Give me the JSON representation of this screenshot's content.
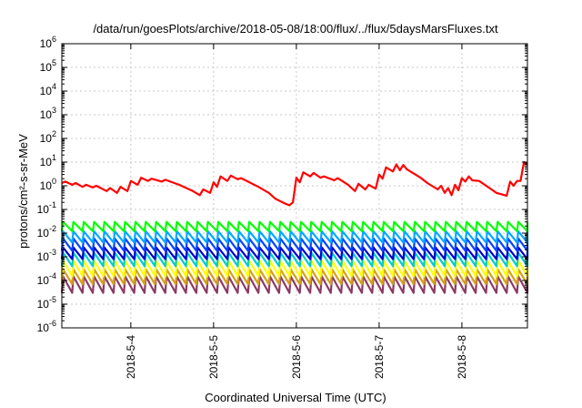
{
  "chart_data": {
    "type": "line",
    "title": "/data/run/goesPlots/archive/2018-05-08/18:00/flux/../flux/5daysMarsFluxes.txt",
    "xlabel": "Coordinated Universal Time (UTC)",
    "ylabel": "protons/cm²-s-sr-MeV",
    "yscale": "log",
    "ylim": [
      1e-06,
      1000000.0
    ],
    "y_ticks": [
      {
        "base": "10",
        "exp": "-6"
      },
      {
        "base": "10",
        "exp": "-5"
      },
      {
        "base": "10",
        "exp": "-4"
      },
      {
        "base": "10",
        "exp": "-3"
      },
      {
        "base": "10",
        "exp": "-2"
      },
      {
        "base": "10",
        "exp": "-1"
      },
      {
        "base": "10",
        "exp": "0"
      },
      {
        "base": "10",
        "exp": "1"
      },
      {
        "base": "10",
        "exp": "2"
      },
      {
        "base": "10",
        "exp": "3"
      },
      {
        "base": "10",
        "exp": "4"
      },
      {
        "base": "10",
        "exp": "5"
      },
      {
        "base": "10",
        "exp": "6"
      }
    ],
    "xlim": [
      "2018-05-03T04:00",
      "2018-05-08T19:00"
    ],
    "x_ticks": [
      {
        "t": "2018-05-04T00:00",
        "label": "2018-5-4"
      },
      {
        "t": "2018-05-05T00:00",
        "label": "2018-5-5"
      },
      {
        "t": "2018-05-06T00:00",
        "label": "2018-5-6"
      },
      {
        "t": "2018-05-07T00:00",
        "label": "2018-5-7"
      },
      {
        "t": "2018-05-08T00:00",
        "label": "2018-5-8"
      }
    ],
    "grid": true,
    "series": [
      {
        "color": "#ff0000",
        "pattern": "points",
        "points": [
          [
            "2018-05-03T04:00",
            1.3
          ],
          [
            "2018-05-03T05:00",
            1.5
          ],
          [
            "2018-05-03T07:00",
            1.1
          ],
          [
            "2018-05-03T08:00",
            1.3
          ],
          [
            "2018-05-03T10:00",
            0.9
          ],
          [
            "2018-05-03T11:00",
            1.1
          ],
          [
            "2018-05-03T13:00",
            0.85
          ],
          [
            "2018-05-03T14:00",
            1.0
          ],
          [
            "2018-05-03T17:00",
            0.6
          ],
          [
            "2018-05-03T18:00",
            0.8
          ],
          [
            "2018-05-03T20:00",
            0.5
          ],
          [
            "2018-05-03T21:00",
            0.9
          ],
          [
            "2018-05-03T23:00",
            0.6
          ],
          [
            "2018-05-04T00:00",
            1.6
          ],
          [
            "2018-05-04T02:00",
            1.1
          ],
          [
            "2018-05-04T03:00",
            2.2
          ],
          [
            "2018-05-04T05:00",
            1.6
          ],
          [
            "2018-05-04T06:00",
            2.0
          ],
          [
            "2018-05-04T09:00",
            1.5
          ],
          [
            "2018-05-04T10:00",
            1.8
          ],
          [
            "2018-05-04T14:00",
            1.1
          ],
          [
            "2018-05-04T18:00",
            0.6
          ],
          [
            "2018-05-04T20:00",
            0.4
          ],
          [
            "2018-05-04T21:00",
            0.7
          ],
          [
            "2018-05-04T23:00",
            0.5
          ],
          [
            "2018-05-05T00:00",
            1.4
          ],
          [
            "2018-05-05T01:00",
            0.9
          ],
          [
            "2018-05-05T02:00",
            2.5
          ],
          [
            "2018-05-05T04:00",
            1.6
          ],
          [
            "2018-05-05T05:00",
            2.7
          ],
          [
            "2018-05-05T07:00",
            1.9
          ],
          [
            "2018-05-05T08:00",
            2.1
          ],
          [
            "2018-05-05T13:00",
            0.9
          ],
          [
            "2018-05-05T16:00",
            0.5
          ],
          [
            "2018-05-05T18:00",
            0.28
          ],
          [
            "2018-05-05T21:00",
            0.17
          ],
          [
            "2018-05-05T22:00",
            0.15
          ],
          [
            "2018-05-05T23:00",
            0.2
          ],
          [
            "2018-05-06T00:00",
            2.2
          ],
          [
            "2018-05-06T01:00",
            1.4
          ],
          [
            "2018-05-06T02:00",
            3.7
          ],
          [
            "2018-05-06T04:00",
            2.5
          ],
          [
            "2018-05-06T05:00",
            3.5
          ],
          [
            "2018-05-06T07:00",
            2.2
          ],
          [
            "2018-05-06T08:00",
            2.5
          ],
          [
            "2018-05-06T11:00",
            1.7
          ],
          [
            "2018-05-06T12:00",
            2.1
          ],
          [
            "2018-05-06T15:00",
            1.1
          ],
          [
            "2018-05-06T17:00",
            0.6
          ],
          [
            "2018-05-06T18:00",
            1.2
          ],
          [
            "2018-05-06T20:00",
            0.7
          ],
          [
            "2018-05-06T21:00",
            1.1
          ],
          [
            "2018-05-06T23:00",
            0.75
          ],
          [
            "2018-05-07T00:00",
            3.0
          ],
          [
            "2018-05-07T01:00",
            2.0
          ],
          [
            "2018-05-07T02:00",
            6.0
          ],
          [
            "2018-05-07T04:00",
            4.0
          ],
          [
            "2018-05-07T05:00",
            8.0
          ],
          [
            "2018-05-07T06:00",
            4.5
          ],
          [
            "2018-05-07T07:00",
            7.5
          ],
          [
            "2018-05-07T08:00",
            5.0
          ],
          [
            "2018-05-07T12:00",
            2.2
          ],
          [
            "2018-05-07T14:00",
            1.3
          ],
          [
            "2018-05-07T17:00",
            0.7
          ],
          [
            "2018-05-07T18:00",
            1.0
          ],
          [
            "2018-05-07T19:00",
            0.5
          ],
          [
            "2018-05-07T20:00",
            0.8
          ],
          [
            "2018-05-07T21:00",
            0.4
          ],
          [
            "2018-05-07T22:00",
            1.1
          ],
          [
            "2018-05-07T23:00",
            0.65
          ],
          [
            "2018-05-08T00:00",
            2.1
          ],
          [
            "2018-05-08T01:00",
            1.5
          ],
          [
            "2018-05-08T02:00",
            2.5
          ],
          [
            "2018-05-08T03:00",
            1.7
          ],
          [
            "2018-05-08T05:00",
            1.6
          ],
          [
            "2018-05-08T08:00",
            0.8
          ],
          [
            "2018-05-08T10:00",
            0.5
          ],
          [
            "2018-05-08T13:00",
            0.38
          ],
          [
            "2018-05-08T14:00",
            1.5
          ],
          [
            "2018-05-08T15:00",
            1.0
          ],
          [
            "2018-05-08T16:00",
            1.6
          ],
          [
            "2018-05-08T17:00",
            1.6
          ],
          [
            "2018-05-08T18:00",
            10.0
          ],
          [
            "2018-05-08T19:00",
            8.0
          ]
        ]
      },
      {
        "color": "#00ff00",
        "pattern": "sawtooth",
        "period_hours": 3,
        "peak": 0.03,
        "trough": 0.012
      },
      {
        "color": "#00aaff",
        "pattern": "sawtooth",
        "period_hours": 3,
        "peak": 0.012,
        "trough": 0.004
      },
      {
        "color": "#0044ff",
        "pattern": "sawtooth",
        "period_hours": 3,
        "peak": 0.006,
        "trough": 0.0018
      },
      {
        "color": "#0000cc",
        "pattern": "sawtooth",
        "period_hours": 3,
        "peak": 0.0025,
        "trough": 0.0008
      },
      {
        "color": "#00cccc",
        "pattern": "sawtooth",
        "period_hours": 3,
        "peak": 0.0015,
        "trough": 0.0004
      },
      {
        "color": "#ffff00",
        "pattern": "sawtooth",
        "period_hours": 3,
        "peak": 0.0007,
        "trough": 0.00015
      },
      {
        "color": "#d4a017",
        "pattern": "sawtooth",
        "period_hours": 3,
        "peak": 0.0003,
        "trough": 7e-05
      },
      {
        "color": "#8b3a62",
        "pattern": "sawtooth",
        "period_hours": 3,
        "peak": 0.00015,
        "trough": 3e-05
      }
    ]
  }
}
